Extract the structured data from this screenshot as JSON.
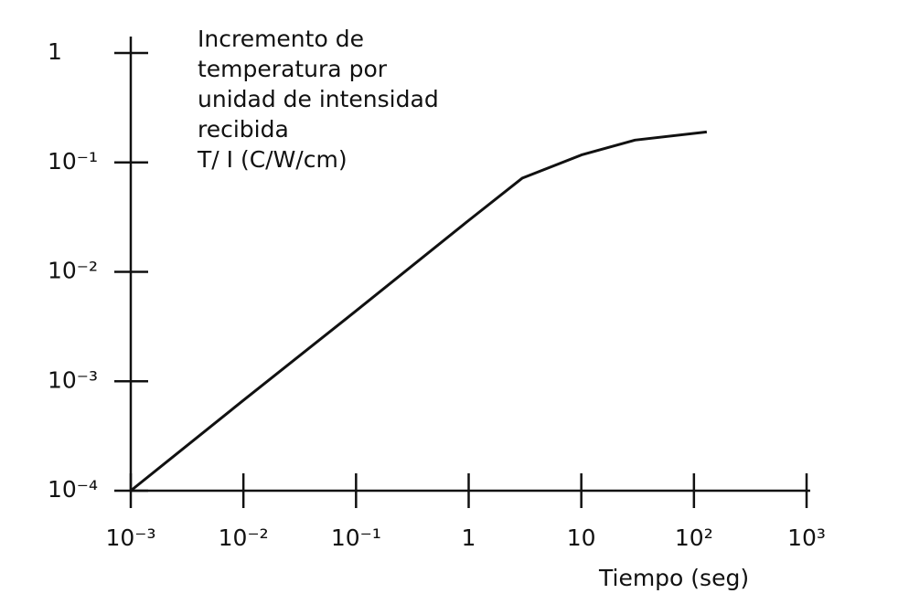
{
  "chart_data": {
    "type": "line",
    "ylabel": [
      "Incremento de",
      "temperatura por",
      "unidad de intensidad",
      "recibida",
      "T/ I   (C/W/cm)"
    ],
    "xlabel": "Tiempo (seg)",
    "xscale": "log",
    "yscale": "log",
    "grid": false,
    "xlim": [
      0.001,
      1000
    ],
    "ylim": [
      0.0001,
      1
    ],
    "xticks": [
      {
        "value": 0.001,
        "label": "10⁻³"
      },
      {
        "value": 0.01,
        "label": "10⁻²"
      },
      {
        "value": 0.1,
        "label": "10⁻¹"
      },
      1,
      10,
      {
        "value": 100,
        "label": "10²"
      },
      {
        "value": 1000,
        "label": "10³"
      }
    ],
    "yticks": [
      {
        "value": 0.0001,
        "label": "10⁻⁴"
      },
      {
        "value": 0.001,
        "label": "10⁻³"
      },
      {
        "value": 0.01,
        "label": "10⁻²"
      },
      {
        "value": 0.1,
        "label": "10⁻¹"
      },
      1
    ],
    "series": [
      {
        "color": "#111111",
        "x": [
          0.001,
          0.01,
          0.1,
          1,
          3,
          10,
          30,
          130
        ],
        "values": [
          0.0001,
          0.00067,
          0.0044,
          0.0295,
          0.072,
          0.117,
          0.16,
          0.19
        ]
      }
    ]
  }
}
